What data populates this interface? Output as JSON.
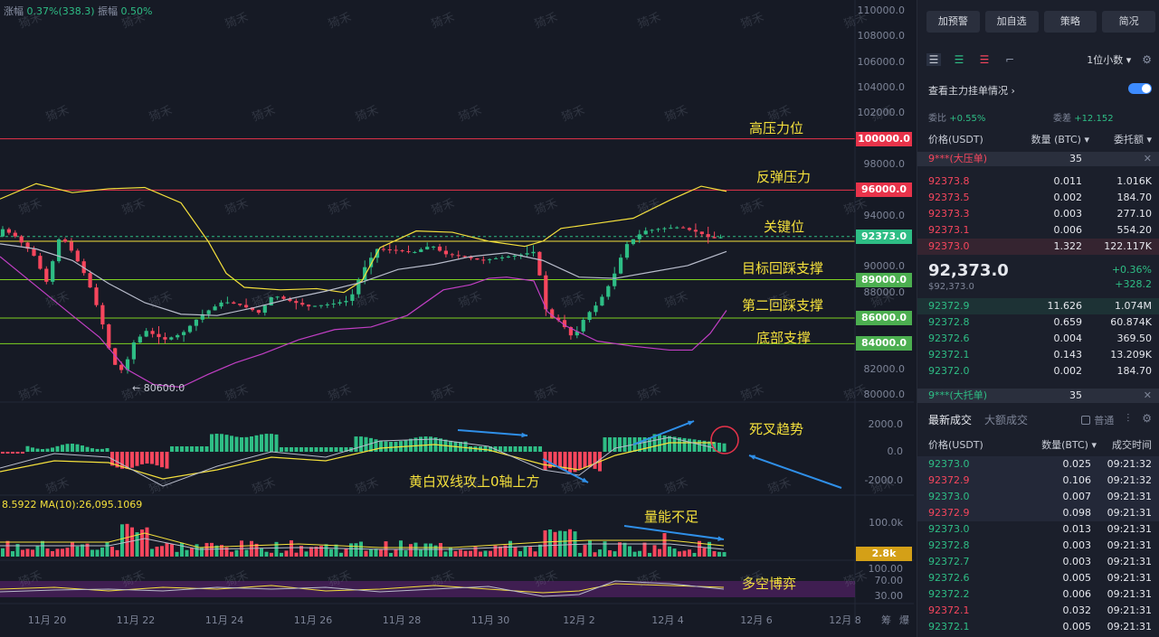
{
  "header": {
    "change_label": "涨幅",
    "change_value": "0.37%(338.3)",
    "amplitude_label": "振幅",
    "amplitude_value": "0.50%"
  },
  "colors": {
    "up": "#2ebd85",
    "down": "#f6465d",
    "annotation": "#f4e03c",
    "arrow": "#2f8fe8",
    "resistance_line": "#e8334a",
    "support_line": "#7ed321",
    "key_line": "#f4e03c",
    "boll": "#f4e03c",
    "ma_white": "#b8bccb",
    "ma_magenta": "#c13fc4"
  },
  "price_axis": [
    "110000.0",
    "108000.0",
    "106000.0",
    "104000.0",
    "102000.0",
    "100000.0",
    "98000.0",
    "96000.0",
    "94000.0",
    "92373.0",
    "90000.0",
    "89000.0",
    "88000.0",
    "86000.0",
    "84000.0",
    "82000.0",
    "80000.0"
  ],
  "level_tags": [
    {
      "price": "100000.0",
      "color": "#e8334a"
    },
    {
      "price": "96000.0",
      "color": "#e8334a"
    },
    {
      "price": "92373.0",
      "color": "#2ebd85"
    },
    {
      "price": "89000.0",
      "color": "#4caf50"
    },
    {
      "price": "86000.0",
      "color": "#4caf50"
    },
    {
      "price": "84000.0",
      "color": "#4caf50"
    }
  ],
  "annotations": {
    "high_resistance": "高压力位",
    "rebound_resistance": "反弹压力",
    "key_level": "关键位",
    "target_support": "目标回踩支撑",
    "second_support": "第二回踩支撑",
    "bottom_support": "底部支撑",
    "death_cross": "死叉趋势",
    "macd_note": "黄白双线攻上0轴上方",
    "volume_note": "量能不足",
    "balance_note": "多空博弈",
    "low_marker": "← 80600.0"
  },
  "macd_axis": [
    "2000.0",
    "0.0",
    "-2000.0"
  ],
  "volume_axis": [
    "100.0k"
  ],
  "volume_tag": "2.8k",
  "volume_ma_label": "8.5922  MA(10):26,095.1069",
  "osc_axis": [
    "100.00",
    "70.00",
    "30.00"
  ],
  "dates": [
    "11月 20",
    "11月 22",
    "11月 24",
    "11月 26",
    "11月 28",
    "11月 30",
    "12月 2",
    "12月 4",
    "12月 6",
    "12月 8"
  ],
  "corner_labels": [
    "筹",
    "爆"
  ],
  "watermark": "猗禾",
  "chart_data": {
    "type": "candlestick",
    "title": "",
    "ylabel": "",
    "ylim": [
      79000,
      111000
    ],
    "current_price": 92373.0,
    "low_marker": 80600.0,
    "horizontal_levels": [
      100000,
      96000,
      92373,
      89000,
      86000,
      84000
    ],
    "x": [
      "11月 20",
      "11月 22",
      "11月 24",
      "11月 26",
      "11月 28",
      "11月 30",
      "12月 2",
      "12月 4",
      "12月 6",
      "12月 8"
    ]
  },
  "sidebar": {
    "buttons": [
      "加预警",
      "加自选",
      "策略",
      "简况"
    ],
    "decimal_label": "1位小数",
    "main_order_label": "查看主力挂单情况",
    "ratio_label": "委比",
    "ratio_value": "+0.55%",
    "diff_label": "委差",
    "diff_value": "+12.152",
    "book_headers": [
      "价格(USDT)",
      "数量 (BTC)",
      "委托额"
    ],
    "ask_big_label": "9***(大压单)",
    "ask_big_value": "35",
    "asks": [
      {
        "price": "92373.8",
        "qty": "0.011",
        "amt": "1.016K"
      },
      {
        "price": "92373.5",
        "qty": "0.002",
        "amt": "184.70"
      },
      {
        "price": "92373.3",
        "qty": "0.003",
        "amt": "277.10"
      },
      {
        "price": "92373.1",
        "qty": "0.006",
        "amt": "554.20"
      },
      {
        "price": "92373.0",
        "qty": "1.322",
        "amt": "122.117K"
      }
    ],
    "last_price": "92,373.0",
    "last_price_sub": "$92,373.0",
    "change_pct": "+0.36%",
    "change_abs": "+328.2",
    "bids": [
      {
        "price": "92372.9",
        "qty": "11.626",
        "amt": "1.074M"
      },
      {
        "price": "92372.8",
        "qty": "0.659",
        "amt": "60.874K"
      },
      {
        "price": "92372.6",
        "qty": "0.004",
        "amt": "369.50"
      },
      {
        "price": "92372.1",
        "qty": "0.143",
        "amt": "13.209K"
      },
      {
        "price": "92372.0",
        "qty": "0.002",
        "amt": "184.70"
      }
    ],
    "bid_big_label": "9***(大托单)",
    "bid_big_value": "35",
    "trade_tabs": [
      "最新成交",
      "大额成交"
    ],
    "normal_label": "普通",
    "trade_headers": [
      "价格(USDT)",
      "数量(BTC)",
      "成交时间"
    ],
    "trades": [
      {
        "price": "92373.0",
        "qty": "0.025",
        "time": "09:21:32",
        "side": "up"
      },
      {
        "price": "92372.9",
        "qty": "0.106",
        "time": "09:21:32",
        "side": "down"
      },
      {
        "price": "92373.0",
        "qty": "0.007",
        "time": "09:21:31",
        "side": "up"
      },
      {
        "price": "92372.9",
        "qty": "0.098",
        "time": "09:21:31",
        "side": "down"
      },
      {
        "price": "92373.0",
        "qty": "0.013",
        "time": "09:21:31",
        "side": "up"
      },
      {
        "price": "92372.8",
        "qty": "0.003",
        "time": "09:21:31",
        "side": "up"
      },
      {
        "price": "92372.7",
        "qty": "0.003",
        "time": "09:21:31",
        "side": "up"
      },
      {
        "price": "92372.6",
        "qty": "0.005",
        "time": "09:21:31",
        "side": "up"
      },
      {
        "price": "92372.2",
        "qty": "0.006",
        "time": "09:21:31",
        "side": "up"
      },
      {
        "price": "92372.1",
        "qty": "0.032",
        "time": "09:21:31",
        "side": "down"
      },
      {
        "price": "92372.1",
        "qty": "0.005",
        "time": "09:21:31",
        "side": "up"
      }
    ]
  }
}
